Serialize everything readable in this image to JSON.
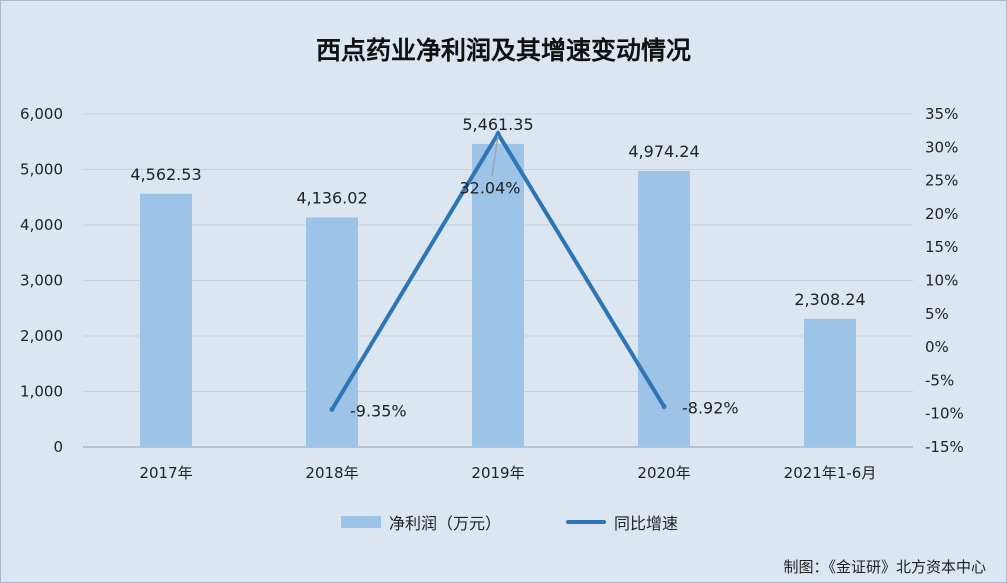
{
  "chart_data": {
    "type": "bar",
    "title": "西点药业净利润及其增速变动情况",
    "categories": [
      "2017年",
      "2018年",
      "2019年",
      "2020年",
      "2021年1-6月"
    ],
    "series": [
      {
        "name": "净利润（万元）",
        "type": "bar",
        "axis": "left",
        "values": [
          4562.53,
          4136.02,
          5461.35,
          4974.24,
          2308.24
        ],
        "labels": [
          "4,562.53",
          "4,136.02",
          "5,461.35",
          "4,974.24",
          "2,308.24"
        ],
        "color": "#9dc3e6"
      },
      {
        "name": "同比增速",
        "type": "line",
        "axis": "right",
        "points": [
          {
            "category": "2018年",
            "value": -9.35,
            "label": "-9.35%"
          },
          {
            "category": "2019年",
            "value": 32.04,
            "label": "32.04%"
          },
          {
            "category": "2020年",
            "value": -8.92,
            "label": "-8.92%"
          }
        ],
        "color": "#2e75b6"
      }
    ],
    "y_left": {
      "min": 0,
      "max": 6000,
      "ticks": [
        "0",
        "1,000",
        "2,000",
        "3,000",
        "4,000",
        "5,000",
        "6,000"
      ]
    },
    "y_right": {
      "min": -15,
      "max": 35,
      "ticks": [
        "-15%",
        "-10%",
        "-5%",
        "0%",
        "5%",
        "10%",
        "15%",
        "20%",
        "25%",
        "30%",
        "35%"
      ]
    },
    "grid": true,
    "legend_position": "bottom"
  },
  "credit": "制图：《金证研》北方资本中心"
}
